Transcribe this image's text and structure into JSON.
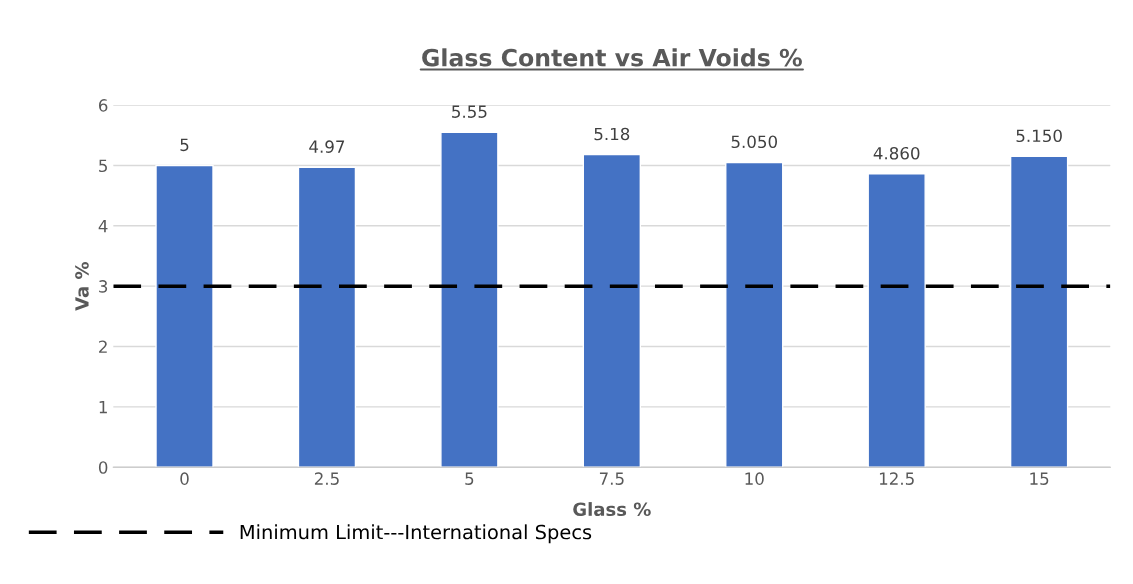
{
  "chart_data": {
    "type": "bar",
    "title": "Glass Content vs Air Voids %",
    "xlabel": "Glass %",
    "ylabel": "Va %",
    "categories": [
      "0",
      "2.5",
      "5",
      "7.5",
      "10",
      "12.5",
      "15"
    ],
    "values": [
      5,
      4.97,
      5.55,
      5.18,
      5.05,
      4.86,
      5.15
    ],
    "value_labels": [
      "5",
      "4.97",
      "5.55",
      "5.18",
      "5.050",
      "4.860",
      "5.150"
    ],
    "color": "#4472c4",
    "ylim": [
      0,
      6
    ],
    "yticks": [
      0,
      1,
      2,
      3,
      4,
      5,
      6
    ],
    "grid": "y",
    "ref_lines": [
      {
        "axis": "y",
        "value": 3,
        "label": "Minimum Limit---International Specs",
        "color": "#000000",
        "line_style": "dashed"
      }
    ]
  }
}
